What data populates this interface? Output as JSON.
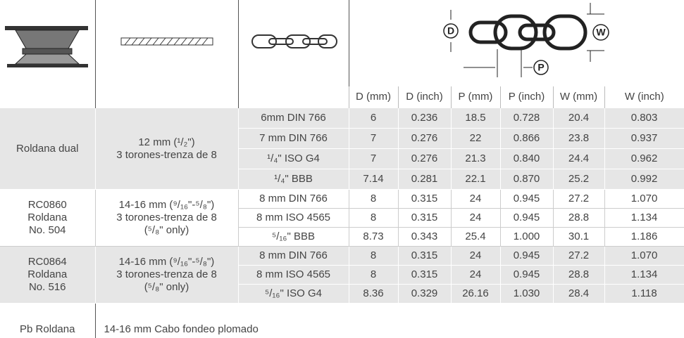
{
  "header": {
    "diagram_labels": [
      "D",
      "W",
      "P"
    ],
    "columns": [
      "D (mm)",
      "D (inch)",
      "P (mm)",
      "P (inch)",
      "W (mm)",
      "W (inch)"
    ]
  },
  "groups": [
    {
      "name": [
        "Roldana dual"
      ],
      "rope": [
        "12 mm (¹/₂\")",
        "3 torones-trenza de 8"
      ],
      "rows": [
        [
          "6mm DIN 766",
          "6",
          "0.236",
          "18.5",
          "0.728",
          "20.4",
          "0.803"
        ],
        [
          "7 mm DIN 766",
          "7",
          "0.276",
          "22",
          "0.866",
          "23.8",
          "0.937"
        ],
        [
          "¹/₄\" ISO G4",
          "7",
          "0.276",
          "21.3",
          "0.840",
          "24.4",
          "0.962"
        ],
        [
          "¹/₄\" BBB",
          "7.14",
          "0.281",
          "22.1",
          "0.870",
          "25.2",
          "0.992"
        ]
      ]
    },
    {
      "name": [
        "RC0860",
        "Roldana",
        "No. 504"
      ],
      "rope": [
        "14-16 mm (⁹/₁₆\"-⁵/₈\")",
        "3 torones-trenza de 8",
        "(⁵/₈\" only)"
      ],
      "rows": [
        [
          "8 mm DIN 766",
          "8",
          "0.315",
          "24",
          "0.945",
          "27.2",
          "1.070"
        ],
        [
          "8 mm ISO 4565",
          "8",
          "0.315",
          "24",
          "0.945",
          "28.8",
          "1.134"
        ],
        [
          "⁵/₁₆\" BBB",
          "8.73",
          "0.343",
          "25.4",
          "1.000",
          "30.1",
          "1.186"
        ]
      ]
    },
    {
      "name": [
        "RC0864",
        "Roldana",
        "No. 516"
      ],
      "rope": [
        "14-16 mm (⁹/₁₆\"-⁵/₈\")",
        "3 torones-trenza de 8",
        "(⁵/₈\" only)"
      ],
      "rows": [
        [
          "8 mm DIN 766",
          "8",
          "0.315",
          "24",
          "0.945",
          "27.2",
          "1.070"
        ],
        [
          "8 mm ISO 4565",
          "8",
          "0.315",
          "24",
          "0.945",
          "28.8",
          "1.134"
        ],
        [
          "⁵/₁₆\" ISO G4",
          "8.36",
          "0.329",
          "26.16",
          "1.030",
          "28.4",
          "1.118"
        ]
      ]
    }
  ],
  "footer": {
    "name": "Pb Roldana",
    "note": "14-16 mm Cabo fondeo plomado"
  }
}
